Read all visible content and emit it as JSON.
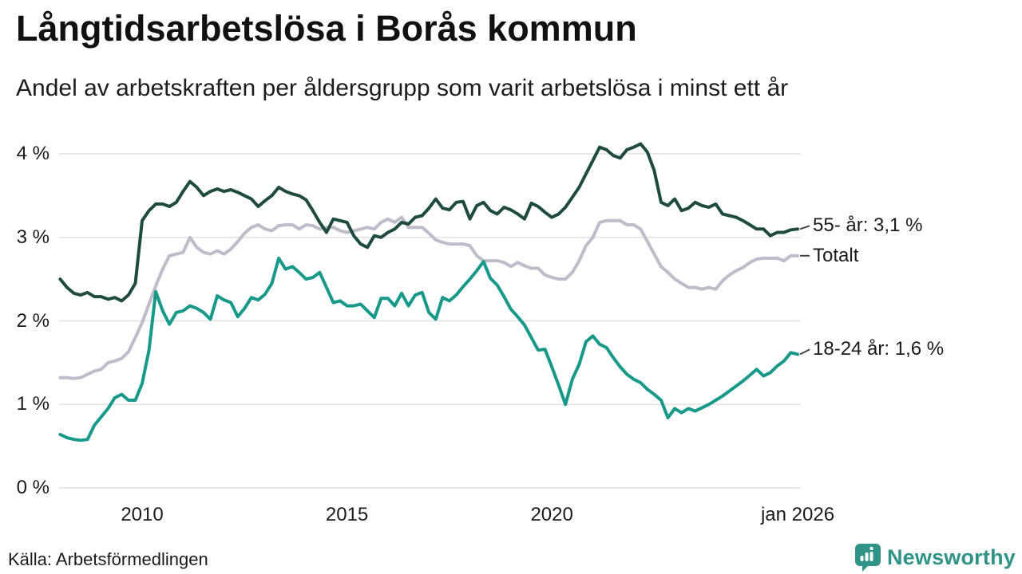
{
  "header": {
    "title": "Långtidsarbetslösa i Borås kommun",
    "subtitle": "Andel av arbetskraften per åldersgrupp som varit arbetslösa i minst ett år"
  },
  "chart_data": {
    "type": "line",
    "title": "Långtidsarbetslösa i Borås kommun",
    "subtitle": "Andel av arbetskraften per åldersgrupp som varit arbetslösa i minst ett år",
    "x_start": "2008-01",
    "x_end": "2026-01",
    "step_months": 2,
    "grid": "horizontal",
    "ylim": [
      0,
      4.3
    ],
    "y_unit": "%",
    "y_ticks": [
      {
        "value": 4,
        "label": "4 %"
      },
      {
        "value": 3,
        "label": "3 %"
      },
      {
        "value": 2,
        "label": "2 %"
      },
      {
        "value": 1,
        "label": "1 %"
      },
      {
        "value": 0,
        "label": "0 %"
      }
    ],
    "x_ticks": [
      {
        "year": 2010,
        "label": "2010"
      },
      {
        "year": 2015,
        "label": "2015"
      },
      {
        "year": 2020,
        "label": "2020"
      },
      {
        "year": 2026,
        "label": "jan 2026"
      }
    ],
    "series": [
      {
        "name": "Totalt",
        "end_label": "Totalt",
        "last_value_label": null,
        "color": "#BDBCC8",
        "values": [
          1.32,
          1.32,
          1.31,
          1.32,
          1.36,
          1.4,
          1.42,
          1.5,
          1.52,
          1.55,
          1.63,
          1.8,
          1.98,
          2.2,
          2.42,
          2.62,
          2.78,
          2.8,
          2.82,
          3.0,
          2.88,
          2.82,
          2.8,
          2.84,
          2.8,
          2.86,
          2.95,
          3.05,
          3.12,
          3.15,
          3.1,
          3.08,
          3.14,
          3.15,
          3.15,
          3.1,
          3.15,
          3.14,
          3.1,
          3.12,
          3.12,
          3.08,
          3.06,
          3.08,
          3.1,
          3.12,
          3.1,
          3.18,
          3.22,
          3.18,
          3.24,
          3.12,
          3.12,
          3.12,
          3.05,
          2.97,
          2.94,
          2.92,
          2.92,
          2.92,
          2.9,
          2.78,
          2.72,
          2.72,
          2.72,
          2.7,
          2.65,
          2.7,
          2.66,
          2.63,
          2.63,
          2.55,
          2.52,
          2.5,
          2.5,
          2.58,
          2.72,
          2.9,
          3.0,
          3.18,
          3.2,
          3.2,
          3.2,
          3.15,
          3.15,
          3.1,
          2.95,
          2.8,
          2.65,
          2.58,
          2.5,
          2.45,
          2.4,
          2.4,
          2.38,
          2.4,
          2.38,
          2.48,
          2.55,
          2.6,
          2.64,
          2.7,
          2.74,
          2.75,
          2.75,
          2.75,
          2.72,
          2.78,
          2.78
        ]
      },
      {
        "name": "18-24 år",
        "end_label": "18-24 år: 1,6 %",
        "last_value_label": "1,6 %",
        "color": "#17998A",
        "values": [
          0.64,
          0.6,
          0.58,
          0.57,
          0.58,
          0.75,
          0.85,
          0.95,
          1.08,
          1.12,
          1.05,
          1.05,
          1.25,
          1.65,
          2.35,
          2.12,
          1.96,
          2.1,
          2.12,
          2.18,
          2.15,
          2.1,
          2.02,
          2.3,
          2.25,
          2.22,
          2.05,
          2.15,
          2.28,
          2.25,
          2.32,
          2.45,
          2.75,
          2.62,
          2.65,
          2.58,
          2.5,
          2.52,
          2.58,
          2.4,
          2.22,
          2.24,
          2.18,
          2.18,
          2.2,
          2.12,
          2.04,
          2.27,
          2.27,
          2.18,
          2.33,
          2.18,
          2.31,
          2.34,
          2.1,
          2.02,
          2.28,
          2.24,
          2.31,
          2.41,
          2.5,
          2.6,
          2.71,
          2.51,
          2.43,
          2.29,
          2.14,
          2.05,
          1.95,
          1.8,
          1.65,
          1.66,
          1.45,
          1.23,
          1.0,
          1.3,
          1.48,
          1.75,
          1.82,
          1.72,
          1.68,
          1.56,
          1.45,
          1.36,
          1.3,
          1.26,
          1.18,
          1.12,
          1.05,
          0.84,
          0.95,
          0.9,
          0.95,
          0.92,
          0.96,
          1.0,
          1.05,
          1.1,
          1.16,
          1.22,
          1.28,
          1.35,
          1.42,
          1.34,
          1.38,
          1.46,
          1.52,
          1.62,
          1.6
        ]
      },
      {
        "name": "55- år",
        "end_label": "55- år: 3,1 %",
        "last_value_label": "3,1 %",
        "color": "#1E4B3E",
        "values": [
          2.5,
          2.4,
          2.33,
          2.31,
          2.34,
          2.29,
          2.29,
          2.26,
          2.28,
          2.24,
          2.31,
          2.45,
          3.2,
          3.32,
          3.4,
          3.4,
          3.37,
          3.42,
          3.55,
          3.67,
          3.6,
          3.5,
          3.55,
          3.58,
          3.55,
          3.57,
          3.54,
          3.5,
          3.46,
          3.37,
          3.44,
          3.5,
          3.6,
          3.55,
          3.52,
          3.5,
          3.45,
          3.32,
          3.18,
          3.06,
          3.22,
          3.2,
          3.18,
          3.02,
          2.92,
          2.88,
          3.02,
          3.0,
          3.06,
          3.1,
          3.18,
          3.16,
          3.24,
          3.26,
          3.35,
          3.46,
          3.35,
          3.33,
          3.42,
          3.43,
          3.22,
          3.38,
          3.42,
          3.32,
          3.28,
          3.36,
          3.33,
          3.28,
          3.22,
          3.41,
          3.37,
          3.3,
          3.24,
          3.28,
          3.36,
          3.48,
          3.6,
          3.76,
          3.92,
          4.08,
          4.05,
          3.98,
          3.95,
          4.05,
          4.08,
          4.12,
          4.02,
          3.8,
          3.42,
          3.38,
          3.46,
          3.32,
          3.35,
          3.42,
          3.38,
          3.36,
          3.4,
          3.28,
          3.26,
          3.24,
          3.2,
          3.15,
          3.1,
          3.1,
          3.02,
          3.06,
          3.06,
          3.09,
          3.1
        ]
      }
    ],
    "legend_position": "right-of-line-ends"
  },
  "footer": {
    "source": "Källa: Arbetsförmedlingen",
    "brand": "Newsworthy",
    "brand_color": "#2F9387"
  }
}
